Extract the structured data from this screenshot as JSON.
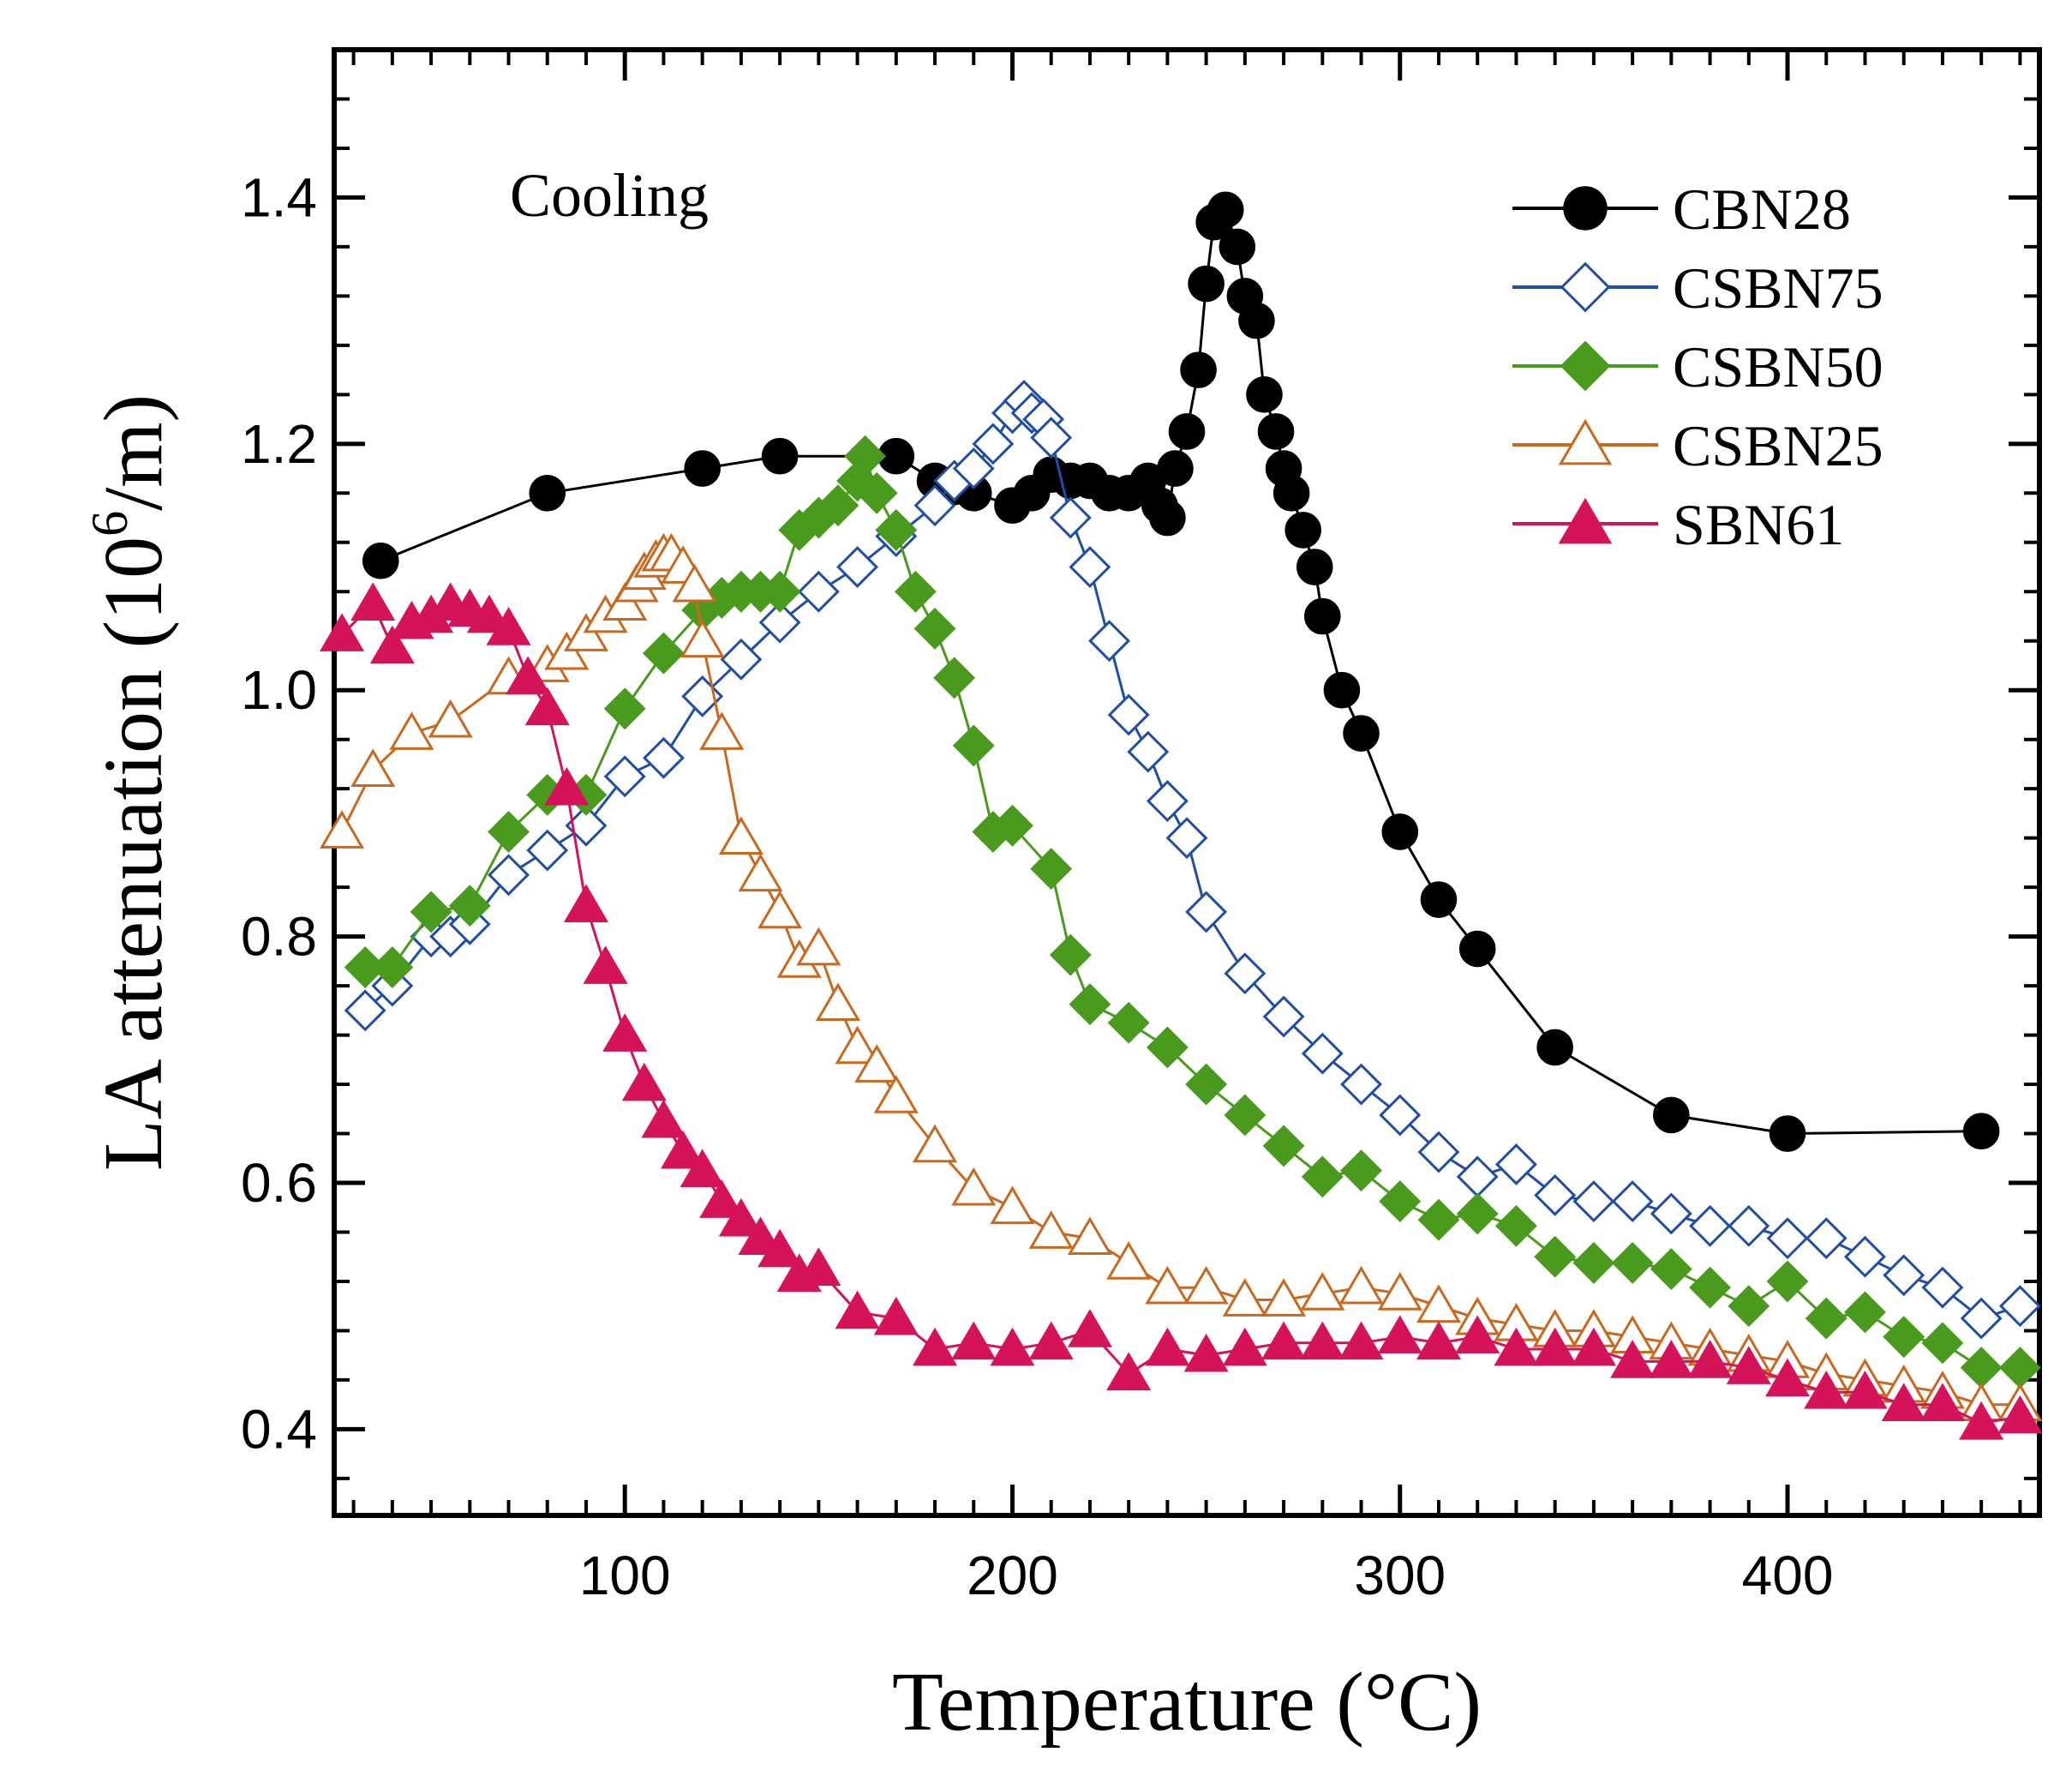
{
  "chart_data": {
    "type": "line",
    "title": "",
    "annotation": "Cooling",
    "xlabel": "Temperature (°C)",
    "ylabel_base": "LA attenuation (10",
    "ylabel_exp": "6",
    "ylabel_tail": "/m)",
    "xlim": [
      25,
      465
    ],
    "ylim": [
      0.33,
      1.52
    ],
    "xticks": [
      100,
      200,
      300,
      400
    ],
    "xtick_labels": [
      "100",
      "200",
      "300",
      "400"
    ],
    "yticks": [
      0.4,
      0.6,
      0.8,
      1.0,
      1.2,
      1.4
    ],
    "ytick_labels": [
      "0.4",
      "0.6",
      "0.8",
      "1.0",
      "1.2",
      "1.4"
    ],
    "grid": false,
    "legend_position": "top-right",
    "series": [
      {
        "name": "CBN28",
        "color": "#000000",
        "marker": "circle",
        "filled": true,
        "x": [
          37,
          80,
          120,
          140,
          170,
          180,
          185,
          190,
          200,
          205,
          210,
          215,
          220,
          225,
          230,
          235,
          238,
          240,
          242,
          245,
          248,
          250,
          252,
          255,
          258,
          260,
          263,
          265,
          268,
          270,
          272,
          275,
          278,
          280,
          285,
          290,
          300,
          310,
          320,
          340,
          370,
          400,
          450
        ],
        "y": [
          1.105,
          1.16,
          1.18,
          1.19,
          1.19,
          1.17,
          1.165,
          1.16,
          1.15,
          1.16,
          1.175,
          1.17,
          1.17,
          1.16,
          1.16,
          1.17,
          1.15,
          1.14,
          1.18,
          1.21,
          1.26,
          1.33,
          1.38,
          1.39,
          1.36,
          1.32,
          1.3,
          1.24,
          1.21,
          1.18,
          1.16,
          1.13,
          1.1,
          1.06,
          1.0,
          0.965,
          0.885,
          0.83,
          0.79,
          0.71,
          0.655,
          0.64,
          0.642
        ]
      },
      {
        "name": "CSBN75",
        "color": "#1f4ea3",
        "marker": "diamond",
        "filled": false,
        "x": [
          33,
          40,
          50,
          55,
          60,
          70,
          80,
          90,
          100,
          110,
          120,
          130,
          140,
          150,
          160,
          170,
          180,
          185,
          190,
          195,
          200,
          203,
          205,
          208,
          210,
          215,
          220,
          225,
          230,
          235,
          240,
          245,
          250,
          260,
          270,
          280,
          290,
          300,
          310,
          320,
          330,
          340,
          350,
          360,
          370,
          380,
          390,
          400,
          410,
          420,
          430,
          440,
          450,
          460
        ],
        "y": [
          0.74,
          0.76,
          0.8,
          0.8,
          0.81,
          0.85,
          0.87,
          0.89,
          0.93,
          0.945,
          0.995,
          1.025,
          1.055,
          1.08,
          1.1,
          1.125,
          1.15,
          1.17,
          1.18,
          1.2,
          1.225,
          1.235,
          1.225,
          1.22,
          1.205,
          1.14,
          1.1,
          1.04,
          0.98,
          0.95,
          0.91,
          0.88,
          0.82,
          0.77,
          0.735,
          0.705,
          0.68,
          0.655,
          0.625,
          0.605,
          0.615,
          0.59,
          0.585,
          0.585,
          0.575,
          0.565,
          0.565,
          0.555,
          0.555,
          0.54,
          0.525,
          0.515,
          0.49,
          0.5
        ]
      },
      {
        "name": "CSBN50",
        "color": "#4a9a1e",
        "marker": "diamond",
        "filled": true,
        "x": [
          33,
          40,
          50,
          60,
          70,
          80,
          90,
          100,
          110,
          120,
          125,
          130,
          135,
          140,
          145,
          150,
          155,
          160,
          162,
          165,
          170,
          175,
          180,
          185,
          190,
          195,
          200,
          210,
          215,
          220,
          230,
          240,
          250,
          260,
          270,
          280,
          290,
          300,
          310,
          320,
          330,
          340,
          350,
          360,
          370,
          380,
          390,
          400,
          410,
          420,
          430,
          440,
          450,
          460
        ],
        "y": [
          0.775,
          0.775,
          0.82,
          0.825,
          0.885,
          0.915,
          0.915,
          0.985,
          1.03,
          1.065,
          1.075,
          1.08,
          1.08,
          1.08,
          1.13,
          1.14,
          1.15,
          1.17,
          1.19,
          1.16,
          1.13,
          1.08,
          1.05,
          1.01,
          0.955,
          0.885,
          0.89,
          0.855,
          0.785,
          0.745,
          0.73,
          0.71,
          0.68,
          0.655,
          0.63,
          0.605,
          0.61,
          0.585,
          0.57,
          0.575,
          0.565,
          0.54,
          0.535,
          0.535,
          0.53,
          0.515,
          0.5,
          0.52,
          0.49,
          0.495,
          0.475,
          0.47,
          0.45,
          0.45
        ]
      },
      {
        "name": "CSBN25",
        "color": "#c8691f",
        "marker": "triangle",
        "filled": false,
        "x": [
          27,
          35,
          45,
          55,
          70,
          80,
          85,
          90,
          95,
          100,
          103,
          105,
          108,
          110,
          112,
          115,
          118,
          120,
          125,
          130,
          135,
          140,
          145,
          150,
          155,
          160,
          165,
          170,
          180,
          190,
          200,
          210,
          220,
          230,
          240,
          250,
          260,
          270,
          280,
          290,
          300,
          310,
          320,
          330,
          340,
          350,
          360,
          370,
          380,
          390,
          400,
          410,
          420,
          430,
          440,
          450,
          460
        ],
        "y": [
          0.885,
          0.935,
          0.965,
          0.975,
          1.01,
          1.02,
          1.03,
          1.045,
          1.06,
          1.07,
          1.085,
          1.095,
          1.105,
          1.11,
          1.11,
          1.1,
          1.085,
          1.04,
          0.965,
          0.88,
          0.85,
          0.82,
          0.78,
          0.79,
          0.745,
          0.71,
          0.695,
          0.67,
          0.63,
          0.595,
          0.58,
          0.56,
          0.555,
          0.535,
          0.515,
          0.515,
          0.505,
          0.505,
          0.51,
          0.515,
          0.51,
          0.5,
          0.49,
          0.485,
          0.48,
          0.48,
          0.475,
          0.47,
          0.465,
          0.46,
          0.455,
          0.445,
          0.44,
          0.435,
          0.43,
          0.42,
          0.42
        ]
      },
      {
        "name": "SBN61",
        "color": "#d4135b",
        "marker": "triangle",
        "filled": true,
        "x": [
          27,
          35,
          40,
          45,
          50,
          55,
          60,
          65,
          70,
          75,
          80,
          85,
          90,
          95,
          100,
          105,
          110,
          115,
          120,
          125,
          130,
          135,
          140,
          145,
          150,
          160,
          170,
          180,
          190,
          200,
          210,
          220,
          230,
          240,
          250,
          260,
          270,
          280,
          290,
          300,
          310,
          320,
          330,
          340,
          350,
          360,
          370,
          380,
          390,
          400,
          410,
          420,
          430,
          440,
          450,
          460
        ],
        "y": [
          1.045,
          1.07,
          1.035,
          1.055,
          1.06,
          1.07,
          1.065,
          1.06,
          1.05,
          1.01,
          0.985,
          0.92,
          0.825,
          0.775,
          0.72,
          0.68,
          0.65,
          0.625,
          0.61,
          0.585,
          0.57,
          0.555,
          0.545,
          0.525,
          0.53,
          0.495,
          0.49,
          0.465,
          0.47,
          0.465,
          0.47,
          0.48,
          0.445,
          0.465,
          0.46,
          0.465,
          0.47,
          0.47,
          0.47,
          0.475,
          0.47,
          0.475,
          0.465,
          0.465,
          0.465,
          0.455,
          0.455,
          0.455,
          0.45,
          0.44,
          0.43,
          0.43,
          0.42,
          0.42,
          0.405,
          0.41
        ]
      }
    ]
  }
}
